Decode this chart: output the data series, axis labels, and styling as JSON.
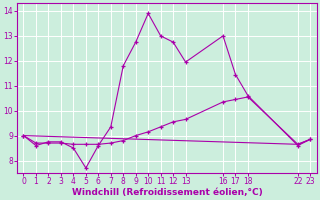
{
  "bg_color": "#cceedd",
  "line_color": "#aa00aa",
  "xlim": [
    -0.5,
    23.5
  ],
  "ylim": [
    7.5,
    14.3
  ],
  "xticks": [
    0,
    1,
    2,
    3,
    4,
    5,
    6,
    7,
    8,
    9,
    10,
    11,
    12,
    13,
    16,
    17,
    18,
    22,
    23
  ],
  "yticks": [
    8,
    9,
    10,
    11,
    12,
    13,
    14
  ],
  "xlabel": "Windchill (Refroidissement éolien,°C)",
  "line1_x": [
    0,
    1,
    2,
    3,
    4,
    5,
    6,
    7,
    8,
    9,
    10,
    11,
    12,
    13,
    16,
    17,
    18,
    22,
    23
  ],
  "line1_y": [
    9.0,
    8.6,
    8.75,
    8.75,
    8.5,
    7.7,
    8.6,
    9.35,
    11.8,
    12.75,
    13.9,
    13.0,
    12.75,
    11.95,
    13.0,
    11.45,
    10.6,
    8.6,
    8.85
  ],
  "line2_x": [
    0,
    1,
    2,
    3,
    4,
    5,
    6,
    7,
    8,
    9,
    10,
    11,
    12,
    13,
    16,
    17,
    18,
    22,
    23
  ],
  "line2_y": [
    9.0,
    8.7,
    8.7,
    8.7,
    8.65,
    8.65,
    8.65,
    8.7,
    8.8,
    9.0,
    9.15,
    9.35,
    9.55,
    9.65,
    10.35,
    10.45,
    10.55,
    8.65,
    8.85
  ],
  "line3_x": [
    0,
    22,
    23
  ],
  "line3_y": [
    9.0,
    8.65,
    8.85
  ],
  "grid_color": "#ffffff",
  "tick_fontsize": 5.5,
  "xlabel_fontsize": 6.5
}
